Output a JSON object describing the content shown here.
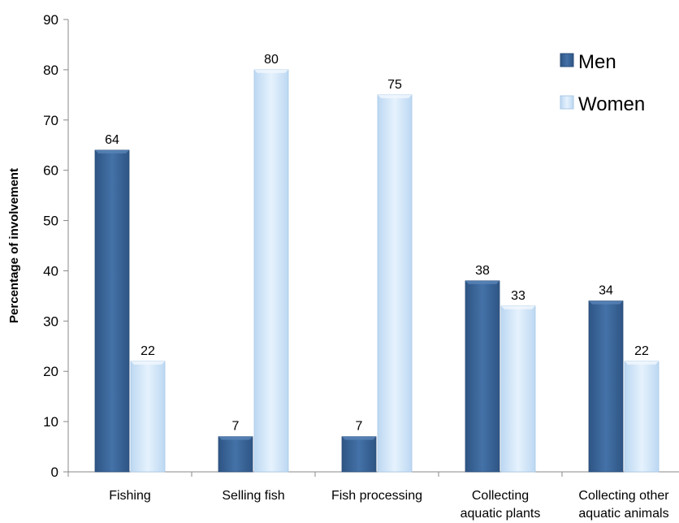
{
  "chart_data": {
    "type": "bar",
    "title": "",
    "xlabel": "",
    "ylabel": "Percentage of involvement",
    "ylim": [
      0,
      90
    ],
    "yticks": [
      0,
      10,
      20,
      30,
      40,
      50,
      60,
      70,
      80,
      90
    ],
    "categories": [
      [
        "Fishing"
      ],
      [
        "Selling fish"
      ],
      [
        "Fish processing"
      ],
      [
        "Collecting",
        "aquatic plants"
      ],
      [
        "Collecting other",
        "aquatic animals"
      ]
    ],
    "series": [
      {
        "name": "Men",
        "values": [
          64,
          7,
          7,
          38,
          34
        ],
        "color": "#3D6596"
      },
      {
        "name": "Women",
        "values": [
          22,
          80,
          75,
          33,
          22
        ],
        "color": "#CFE4F8"
      }
    ],
    "legend_position": "top-right",
    "grid": false
  }
}
